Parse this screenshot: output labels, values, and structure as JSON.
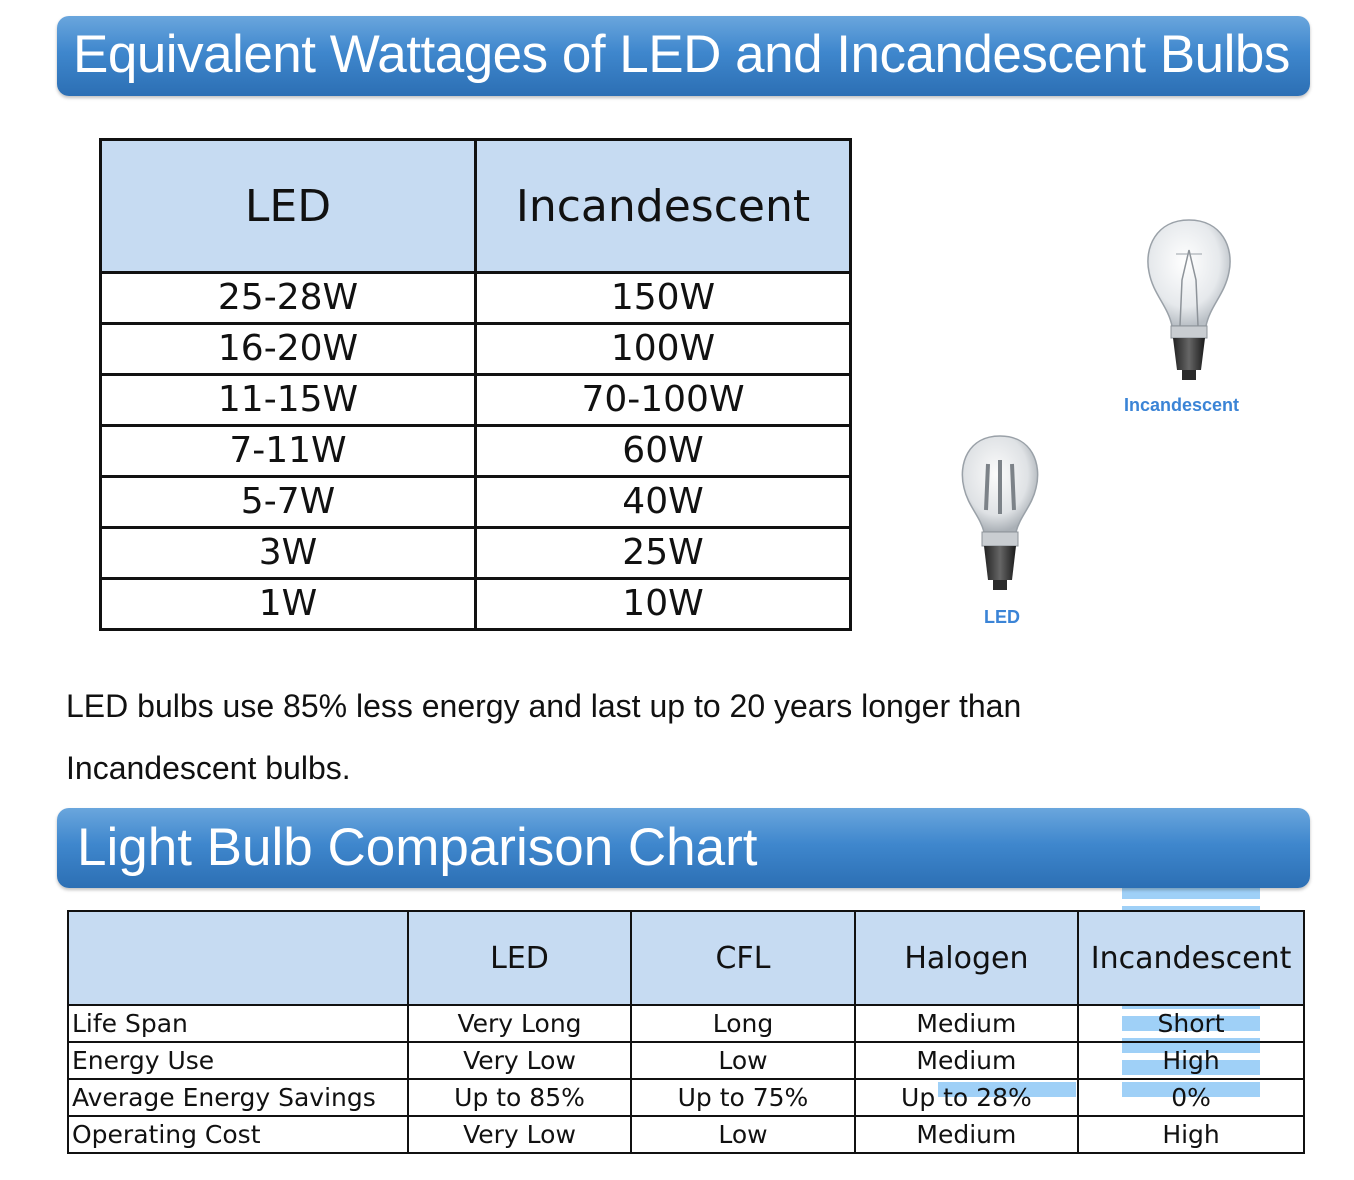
{
  "banner_top": {
    "title": "Equivalent Wattages of LED and Incandescent Bulbs"
  },
  "wattage_table": {
    "headers": [
      "LED",
      "Incandescent"
    ],
    "rows": [
      [
        "25-28W",
        "150W"
      ],
      [
        "16-20W",
        "100W"
      ],
      [
        "11-15W",
        "70-100W"
      ],
      [
        "7-11W",
        "60W"
      ],
      [
        "5-7W",
        "40W"
      ],
      [
        "3W",
        "25W"
      ],
      [
        "1W",
        "10W"
      ]
    ]
  },
  "illustration": {
    "led_label": "LED",
    "incandescent_label": "Incandescent",
    "led_bar_segments": 1,
    "incandescent_bar_segments": 10,
    "bar_color": "#9fd0f7",
    "label_color": "#3b84d6"
  },
  "note": {
    "line1": "LED bulbs use 85% less energy and last up to 20 years longer than",
    "line2": "Incandescent bulbs."
  },
  "banner_bottom": {
    "title": "Light Bulb Comparison Chart"
  },
  "comparison_table": {
    "headers": [
      "",
      "LED",
      "CFL",
      "Halogen",
      "Incandescent"
    ],
    "rows": [
      [
        "Life Span",
        "Very Long",
        "Long",
        "Medium",
        "Short"
      ],
      [
        "Energy Use",
        "Very Low",
        "Low",
        "Medium",
        "High"
      ],
      [
        "Average Energy Savings",
        "Up to 85%",
        "Up to 75%",
        "Up to 28%",
        "0%"
      ],
      [
        "Operating Cost",
        "Very Low",
        "Low",
        "Medium",
        "High"
      ]
    ]
  },
  "colors": {
    "banner_gradient_top": "#6aa6dd",
    "banner_gradient_bottom": "#2c6fb4",
    "header_fill": "#c6dbf2"
  }
}
